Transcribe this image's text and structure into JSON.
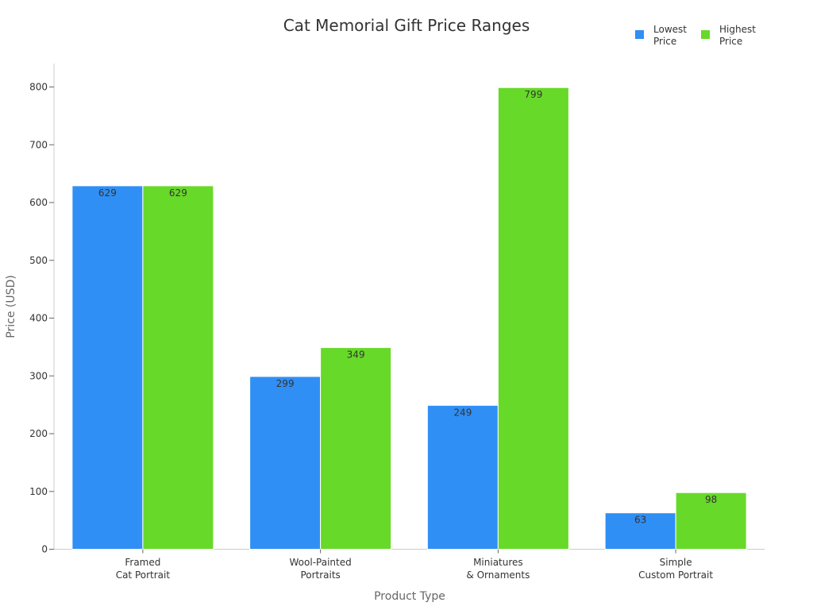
{
  "chart_data": {
    "type": "bar",
    "title": "Cat Memorial Gift Price Ranges",
    "xlabel": "Product Type",
    "ylabel": "Price (USD)",
    "ylim": [
      0,
      840
    ],
    "yticks": [
      0,
      100,
      200,
      300,
      400,
      500,
      600,
      700,
      800
    ],
    "grid": false,
    "legend_position": "top-right",
    "categories": [
      [
        "Framed",
        "Cat Portrait"
      ],
      [
        "Wool-Painted",
        "Portraits"
      ],
      [
        "Miniatures",
        "& Ornaments"
      ],
      [
        "Simple",
        "Custom Portrait"
      ]
    ],
    "series": [
      {
        "name": "Lowest Price",
        "legend_lines": [
          "Lowest",
          "Price"
        ],
        "color": "#2f8ff5",
        "values": [
          629,
          299,
          249,
          63
        ]
      },
      {
        "name": "Highest Price",
        "legend_lines": [
          "Highest",
          "Price"
        ],
        "color": "#67d928",
        "values": [
          629,
          349,
          799,
          98
        ]
      }
    ]
  }
}
